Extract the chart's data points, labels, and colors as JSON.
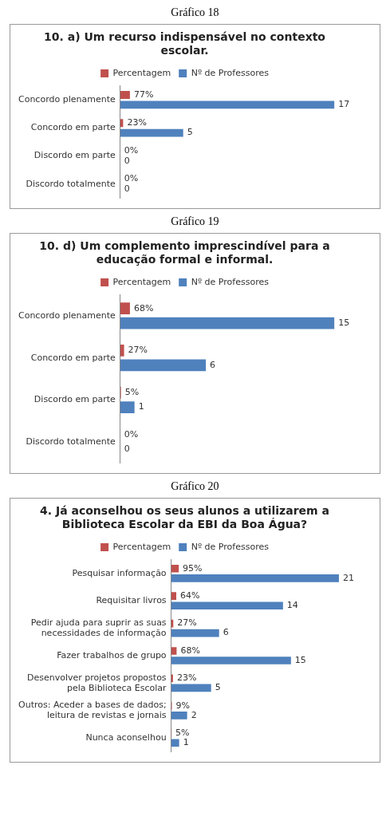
{
  "chart_data": [
    {
      "type": "bar",
      "orientation": "horizontal",
      "title": "10. a) Um recurso indispensável no contexto escolar.",
      "annotations": [
        "Gráfico 18"
      ],
      "legend": "top",
      "categories": [
        "Concordo plenamente",
        "Concordo em parte",
        "Discordo em parte",
        "Discordo totalmente"
      ],
      "series": [
        {
          "name": "Percentagem",
          "color": "#c0504d",
          "values": [
            0.77,
            0.23,
            0,
            0
          ],
          "value_labels": [
            "77%",
            "23%",
            "0%",
            "0%"
          ]
        },
        {
          "name": "Nº de Professores",
          "color": "#4f81bd",
          "values": [
            17,
            5,
            0,
            0
          ],
          "value_labels": [
            "17",
            "5",
            "0",
            "0"
          ]
        }
      ]
    },
    {
      "type": "bar",
      "orientation": "horizontal",
      "title": "10. d) Um complemento imprescindível para a educação formal e informal.",
      "annotations": [
        "Gráfico 19"
      ],
      "legend": "top",
      "categories": [
        "Concordo plenamente",
        "Concordo em parte",
        "Discordo em parte",
        "Discordo totalmente"
      ],
      "series": [
        {
          "name": "Percentagem",
          "color": "#c0504d",
          "values": [
            0.68,
            0.27,
            0.05,
            0
          ],
          "value_labels": [
            "68%",
            "27%",
            "5%",
            "0%"
          ]
        },
        {
          "name": "Nº de Professores",
          "color": "#4f81bd",
          "values": [
            15,
            6,
            1,
            0
          ],
          "value_labels": [
            "15",
            "6",
            "1",
            "0"
          ]
        }
      ]
    },
    {
      "type": "bar",
      "orientation": "horizontal",
      "title": "4. Já aconselhou os seus alunos a utilizarem a Biblioteca Escolar da EBI da Boa Água?",
      "annotations": [
        "Gráfico 20"
      ],
      "legend": "top",
      "categories": [
        "Pesquisar informação",
        "Requisitar livros",
        "Pedir ajuda para suprir as suas necessidades de informação",
        "Fazer trabalhos de grupo",
        "Desenvolver projetos propostos pela Biblioteca Escolar",
        "Outros: Aceder a bases de dados; leitura de revistas e jornais",
        "Nunca aconselhou"
      ],
      "series": [
        {
          "name": "Percentagem",
          "color": "#c0504d",
          "values": [
            0.95,
            0.64,
            0.27,
            0.68,
            0.23,
            0.09,
            0.05
          ],
          "value_labels": [
            "95%",
            "64%",
            "27%",
            "68%",
            "23%",
            "9%",
            "5%"
          ]
        },
        {
          "name": "Nº de Professores",
          "color": "#4f81bd",
          "values": [
            21,
            14,
            6,
            15,
            5,
            2,
            1
          ],
          "value_labels": [
            "21",
            "14",
            "6",
            "15",
            "5",
            "2",
            "1"
          ]
        }
      ]
    }
  ]
}
